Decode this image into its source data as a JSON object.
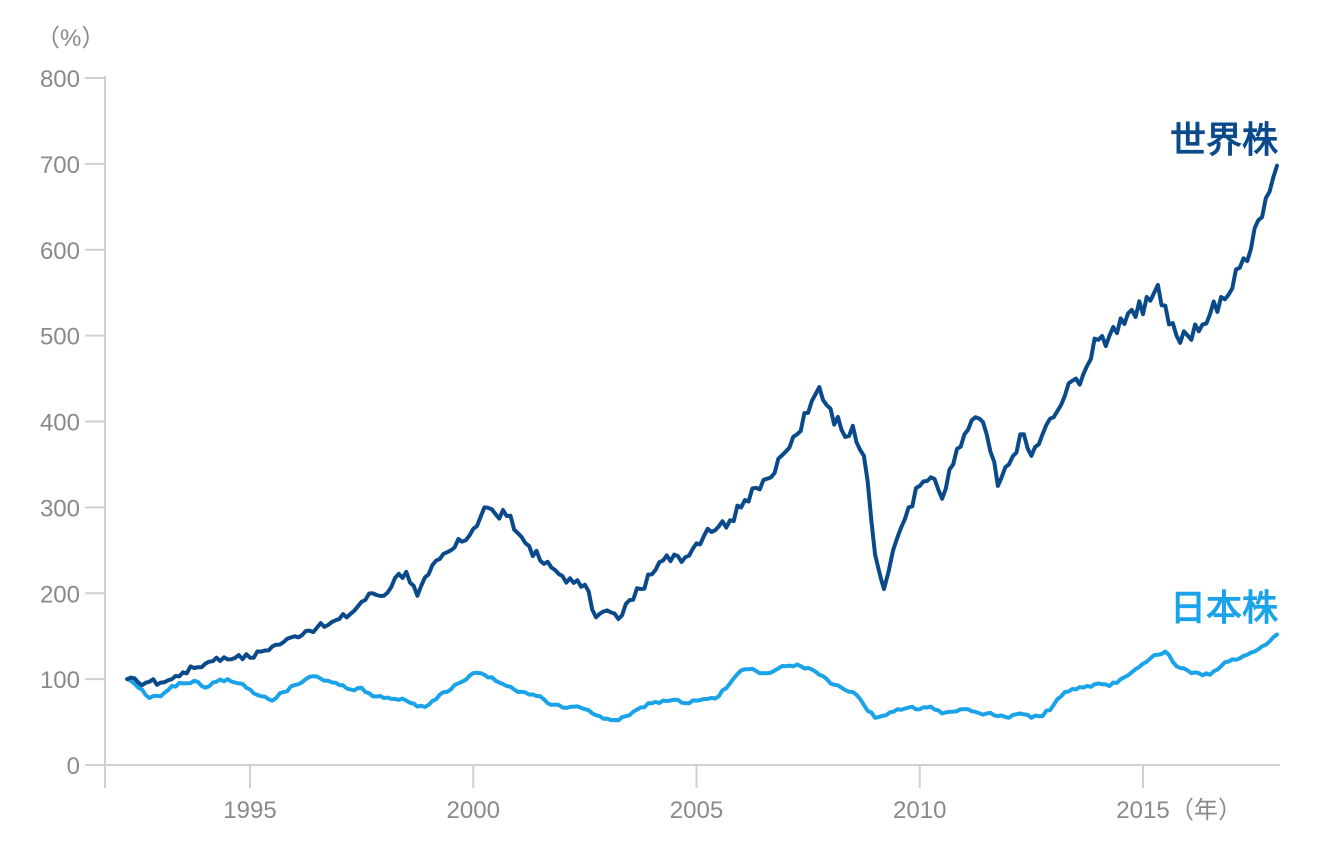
{
  "chart_data": {
    "type": "line",
    "y_unit_label": "（%）",
    "x_unit_label": "（年）",
    "ylim": [
      0,
      800
    ],
    "y_ticks": [
      "0",
      "100",
      "200",
      "300",
      "400",
      "500",
      "600",
      "700",
      "800"
    ],
    "x_range": [
      1992.0,
      2018.0
    ],
    "x_ticks": [
      {
        "value": 1995,
        "label": "1995"
      },
      {
        "value": 2000,
        "label": "2000"
      },
      {
        "value": 2005,
        "label": "2005"
      },
      {
        "value": 2010,
        "label": "2010"
      },
      {
        "value": 2015,
        "label": "2015"
      }
    ],
    "grid": false,
    "series": [
      {
        "name": "世界株",
        "color": "#0a4a8a",
        "points": [
          [
            1992.25,
            100
          ],
          [
            1992.5,
            96
          ],
          [
            1992.75,
            97
          ],
          [
            1993.0,
            96
          ],
          [
            1993.25,
            100
          ],
          [
            1993.5,
            108
          ],
          [
            1993.75,
            113
          ],
          [
            1994.0,
            118
          ],
          [
            1994.25,
            125
          ],
          [
            1994.5,
            123
          ],
          [
            1994.75,
            128
          ],
          [
            1995.0,
            125
          ],
          [
            1995.25,
            132
          ],
          [
            1995.5,
            138
          ],
          [
            1995.75,
            143
          ],
          [
            1996.0,
            150
          ],
          [
            1996.25,
            156
          ],
          [
            1996.5,
            160
          ],
          [
            1996.75,
            163
          ],
          [
            1997.0,
            170
          ],
          [
            1997.25,
            176
          ],
          [
            1997.5,
            190
          ],
          [
            1997.75,
            200
          ],
          [
            1998.0,
            197
          ],
          [
            1998.25,
            218
          ],
          [
            1998.5,
            225
          ],
          [
            1998.75,
            197
          ],
          [
            1999.0,
            222
          ],
          [
            1999.25,
            240
          ],
          [
            1999.5,
            250
          ],
          [
            1999.75,
            260
          ],
          [
            2000.0,
            275
          ],
          [
            2000.25,
            300
          ],
          [
            2000.5,
            292
          ],
          [
            2000.75,
            290
          ],
          [
            2001.0,
            270
          ],
          [
            2001.25,
            255
          ],
          [
            2001.5,
            238
          ],
          [
            2001.75,
            230
          ],
          [
            2002.0,
            220
          ],
          [
            2002.25,
            212
          ],
          [
            2002.5,
            210
          ],
          [
            2002.75,
            172
          ],
          [
            2003.0,
            180
          ],
          [
            2003.25,
            170
          ],
          [
            2003.5,
            192
          ],
          [
            2003.75,
            205
          ],
          [
            2004.0,
            222
          ],
          [
            2004.25,
            238
          ],
          [
            2004.5,
            245
          ],
          [
            2004.75,
            242
          ],
          [
            2005.0,
            258
          ],
          [
            2005.25,
            275
          ],
          [
            2005.5,
            278
          ],
          [
            2005.75,
            285
          ],
          [
            2006.0,
            300
          ],
          [
            2006.25,
            322
          ],
          [
            2006.5,
            332
          ],
          [
            2006.75,
            340
          ],
          [
            2007.0,
            365
          ],
          [
            2007.25,
            385
          ],
          [
            2007.5,
            410
          ],
          [
            2007.75,
            440
          ],
          [
            2008.0,
            415
          ],
          [
            2008.25,
            390
          ],
          [
            2008.5,
            395
          ],
          [
            2008.75,
            360
          ],
          [
            2009.0,
            245
          ],
          [
            2009.2,
            205
          ],
          [
            2009.5,
            265
          ],
          [
            2009.75,
            300
          ],
          [
            2010.0,
            325
          ],
          [
            2010.25,
            335
          ],
          [
            2010.5,
            310
          ],
          [
            2010.75,
            350
          ],
          [
            2011.0,
            385
          ],
          [
            2011.25,
            405
          ],
          [
            2011.5,
            385
          ],
          [
            2011.75,
            325
          ],
          [
            2012.0,
            350
          ],
          [
            2012.25,
            385
          ],
          [
            2012.5,
            360
          ],
          [
            2012.75,
            385
          ],
          [
            2013.0,
            405
          ],
          [
            2013.25,
            430
          ],
          [
            2013.5,
            450
          ],
          [
            2013.75,
            465
          ],
          [
            2014.0,
            495
          ],
          [
            2014.25,
            500
          ],
          [
            2014.5,
            520
          ],
          [
            2014.75,
            530
          ],
          [
            2015.0,
            525
          ],
          [
            2015.25,
            550
          ],
          [
            2015.5,
            535
          ],
          [
            2015.75,
            500
          ],
          [
            2016.0,
            500
          ],
          [
            2016.25,
            505
          ],
          [
            2016.5,
            525
          ],
          [
            2016.75,
            545
          ],
          [
            2017.0,
            555
          ],
          [
            2017.25,
            590
          ],
          [
            2017.5,
            625
          ],
          [
            2017.75,
            660
          ],
          [
            2018.0,
            698
          ]
        ]
      },
      {
        "name": "日本株",
        "color": "#1aa3e8",
        "points": [
          [
            1992.25,
            100
          ],
          [
            1992.5,
            90
          ],
          [
            1992.75,
            78
          ],
          [
            1993.0,
            80
          ],
          [
            1993.25,
            92
          ],
          [
            1993.5,
            95
          ],
          [
            1993.75,
            98
          ],
          [
            1994.0,
            90
          ],
          [
            1994.25,
            97
          ],
          [
            1994.5,
            100
          ],
          [
            1994.75,
            95
          ],
          [
            1995.0,
            88
          ],
          [
            1995.25,
            80
          ],
          [
            1995.5,
            75
          ],
          [
            1995.75,
            85
          ],
          [
            1996.0,
            93
          ],
          [
            1996.25,
            100
          ],
          [
            1996.5,
            103
          ],
          [
            1996.75,
            98
          ],
          [
            1997.0,
            93
          ],
          [
            1997.25,
            88
          ],
          [
            1997.5,
            90
          ],
          [
            1997.75,
            80
          ],
          [
            1998.0,
            78
          ],
          [
            1998.25,
            77
          ],
          [
            1998.5,
            75
          ],
          [
            1998.75,
            68
          ],
          [
            1999.0,
            70
          ],
          [
            1999.25,
            82
          ],
          [
            1999.5,
            88
          ],
          [
            1999.75,
            97
          ],
          [
            2000.0,
            107
          ],
          [
            2000.25,
            105
          ],
          [
            2000.5,
            98
          ],
          [
            2000.75,
            92
          ],
          [
            2001.0,
            85
          ],
          [
            2001.25,
            82
          ],
          [
            2001.5,
            80
          ],
          [
            2001.75,
            70
          ],
          [
            2002.0,
            67
          ],
          [
            2002.25,
            68
          ],
          [
            2002.5,
            65
          ],
          [
            2002.75,
            58
          ],
          [
            2003.0,
            54
          ],
          [
            2003.25,
            52
          ],
          [
            2003.5,
            58
          ],
          [
            2003.75,
            67
          ],
          [
            2004.0,
            72
          ],
          [
            2004.25,
            75
          ],
          [
            2004.5,
            76
          ],
          [
            2004.75,
            72
          ],
          [
            2005.0,
            75
          ],
          [
            2005.25,
            77
          ],
          [
            2005.5,
            80
          ],
          [
            2005.75,
            95
          ],
          [
            2006.0,
            110
          ],
          [
            2006.25,
            112
          ],
          [
            2006.5,
            107
          ],
          [
            2006.75,
            110
          ],
          [
            2007.0,
            115
          ],
          [
            2007.25,
            117
          ],
          [
            2007.5,
            113
          ],
          [
            2007.75,
            105
          ],
          [
            2008.0,
            95
          ],
          [
            2008.25,
            90
          ],
          [
            2008.5,
            85
          ],
          [
            2008.75,
            70
          ],
          [
            2009.0,
            55
          ],
          [
            2009.25,
            58
          ],
          [
            2009.5,
            65
          ],
          [
            2009.75,
            67
          ],
          [
            2010.0,
            65
          ],
          [
            2010.25,
            68
          ],
          [
            2010.5,
            60
          ],
          [
            2010.75,
            62
          ],
          [
            2011.0,
            65
          ],
          [
            2011.25,
            62
          ],
          [
            2011.5,
            60
          ],
          [
            2011.75,
            57
          ],
          [
            2012.0,
            55
          ],
          [
            2012.25,
            60
          ],
          [
            2012.5,
            55
          ],
          [
            2012.75,
            57
          ],
          [
            2013.0,
            70
          ],
          [
            2013.25,
            85
          ],
          [
            2013.5,
            88
          ],
          [
            2013.75,
            92
          ],
          [
            2014.0,
            95
          ],
          [
            2014.25,
            92
          ],
          [
            2014.5,
            100
          ],
          [
            2014.75,
            108
          ],
          [
            2015.0,
            118
          ],
          [
            2015.25,
            128
          ],
          [
            2015.5,
            132
          ],
          [
            2015.75,
            115
          ],
          [
            2016.0,
            110
          ],
          [
            2016.25,
            107
          ],
          [
            2016.5,
            105
          ],
          [
            2016.75,
            115
          ],
          [
            2017.0,
            123
          ],
          [
            2017.25,
            127
          ],
          [
            2017.5,
            132
          ],
          [
            2017.75,
            140
          ],
          [
            2018.0,
            152
          ]
        ]
      }
    ]
  }
}
